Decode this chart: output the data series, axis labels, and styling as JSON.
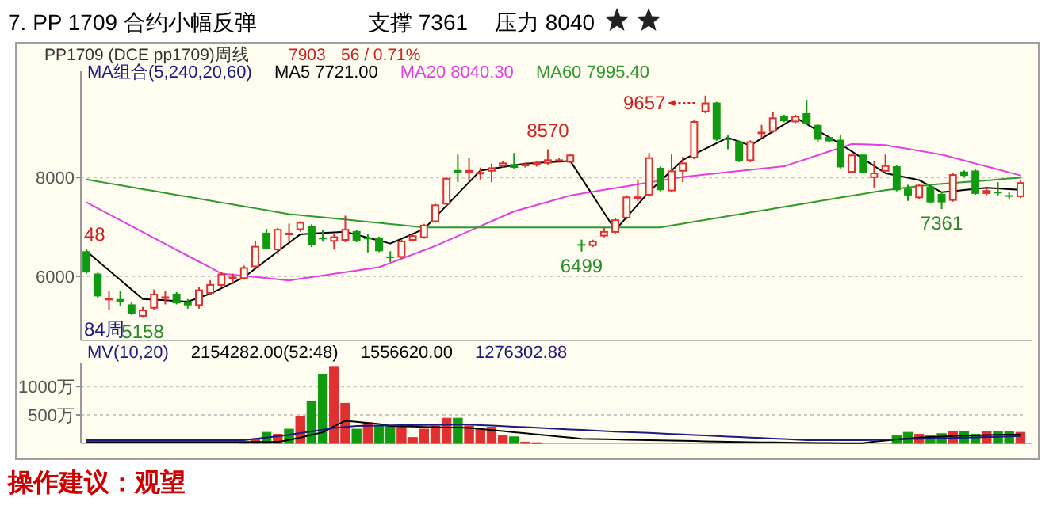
{
  "chart_data": [
    {
      "type": "candlestick",
      "title": "7. PP 1709 合约小幅反弹",
      "subtitle": "PP1709 (DCE pp1709)周线",
      "categories": [
        null,
        null,
        null,
        null,
        null,
        null,
        null,
        null,
        null,
        null,
        null,
        null,
        null,
        null,
        null,
        null,
        null,
        null,
        null,
        null,
        null,
        null,
        null,
        null,
        null,
        null,
        null,
        null,
        null,
        null,
        null,
        null,
        null,
        null,
        null,
        null,
        null,
        null,
        null,
        null,
        null,
        null,
        null,
        null,
        null,
        null,
        null,
        null,
        null,
        null,
        null,
        null,
        null,
        null,
        null,
        null,
        null,
        null,
        null,
        null,
        null,
        null,
        null,
        null,
        null,
        null,
        null,
        null,
        null,
        null,
        null,
        null,
        null,
        null,
        null,
        null,
        null,
        null,
        null,
        null,
        null,
        null,
        null,
        null
      ],
      "ohlc": [
        [
          6506,
          6560,
          6054,
          6076
        ],
        [
          6054,
          6075,
          5560,
          5592
        ],
        [
          5550,
          5700,
          5323,
          5560
        ],
        [
          5538,
          5700,
          5400,
          5485
        ],
        [
          5431,
          5485,
          5215,
          5237
        ],
        [
          5183,
          5377,
          5158,
          5323
        ],
        [
          5345,
          5732,
          5323,
          5646
        ],
        [
          5560,
          5700,
          5430,
          5590
        ],
        [
          5646,
          5680,
          5430,
          5452
        ],
        [
          5485,
          5538,
          5345,
          5410
        ],
        [
          5400,
          5775,
          5345,
          5732
        ],
        [
          5646,
          5915,
          5625,
          5840
        ],
        [
          5807,
          6080,
          5790,
          6054
        ],
        [
          5980,
          6054,
          5840,
          5990
        ],
        [
          5947,
          6215,
          5930,
          6183
        ],
        [
          6183,
          6720,
          6160,
          6613
        ],
        [
          6882,
          6957,
          6540,
          6560
        ],
        [
          6527,
          6980,
          6452,
          6957
        ],
        [
          6860,
          7065,
          6720,
          6880
        ],
        [
          6936,
          7110,
          6900,
          7097
        ],
        [
          7022,
          7050,
          6590,
          6635
        ],
        [
          6780,
          6936,
          6700,
          6775
        ],
        [
          6700,
          6850,
          6540,
          6807
        ],
        [
          6720,
          7226,
          6690,
          6957
        ],
        [
          6914,
          6935,
          6690,
          6720
        ],
        [
          6780,
          6850,
          6484,
          6770
        ],
        [
          6775,
          6800,
          6490,
          6506
        ],
        [
          6400,
          6506,
          6290,
          6395
        ],
        [
          6377,
          6740,
          6355,
          6720
        ],
        [
          6720,
          6860,
          6700,
          6828
        ],
        [
          6775,
          7060,
          6760,
          7043
        ],
        [
          7097,
          7470,
          7080,
          7452
        ],
        [
          7452,
          8000,
          7430,
          7989
        ],
        [
          8150,
          8462,
          7903,
          8086
        ],
        [
          8086,
          8387,
          7950,
          8150
        ],
        [
          8100,
          8200,
          7957,
          8110
        ],
        [
          8118,
          8280,
          7903,
          8204
        ],
        [
          8226,
          8340,
          8200,
          8301
        ],
        [
          8269,
          8495,
          8180,
          8194
        ],
        [
          8226,
          8300,
          8200,
          8280
        ],
        [
          8247,
          8330,
          8220,
          8312
        ],
        [
          8280,
          8570,
          8260,
          8366
        ],
        [
          8360,
          8400,
          8330,
          8365
        ],
        [
          8301,
          8480,
          8290,
          8462
        ],
        [
          6650,
          6742,
          6499,
          6630
        ],
        [
          6613,
          6740,
          6590,
          6720
        ],
        [
          6807,
          6990,
          6790,
          6914
        ],
        [
          6882,
          7170,
          6860,
          7150
        ],
        [
          7172,
          7640,
          7150,
          7613
        ],
        [
          7600,
          7957,
          7527,
          7615
        ],
        [
          7635,
          8495,
          7610,
          8408
        ],
        [
          8194,
          8220,
          7720,
          7742
        ],
        [
          7720,
          8462,
          7700,
          8140
        ],
        [
          8118,
          8420,
          7903,
          8301
        ],
        [
          8387,
          9160,
          8370,
          9140
        ],
        [
          9322,
          9657,
          9300,
          9516
        ],
        [
          9516,
          9530,
          8740,
          8763
        ],
        [
          8790,
          8850,
          8570,
          8780
        ],
        [
          8731,
          8750,
          8310,
          8333
        ],
        [
          8333,
          8750,
          8310,
          8731
        ],
        [
          8920,
          9064,
          8800,
          8925
        ],
        [
          8924,
          9322,
          8900,
          9215
        ],
        [
          9247,
          9270,
          9120,
          9140
        ],
        [
          9118,
          9270,
          9100,
          9247
        ],
        [
          9300,
          9570,
          9060,
          9086
        ],
        [
          9064,
          9080,
          8710,
          8763
        ],
        [
          8817,
          8840,
          8700,
          8731
        ],
        [
          8763,
          8870,
          8180,
          8204
        ],
        [
          8097,
          8480,
          8080,
          8462
        ],
        [
          8462,
          8480,
          8080,
          8097
        ],
        [
          7989,
          8333,
          7796,
          8097
        ],
        [
          8118,
          8462,
          8100,
          8247
        ],
        [
          8226,
          8240,
          7720,
          7742
        ],
        [
          7774,
          7850,
          7527,
          7635
        ],
        [
          7581,
          7870,
          7560,
          7850
        ],
        [
          7817,
          7830,
          7470,
          7495
        ],
        [
          7667,
          7700,
          7361,
          7495
        ],
        [
          7527,
          8086,
          7510,
          8065
        ],
        [
          8118,
          8140,
          8010,
          8032
        ],
        [
          8140,
          8160,
          7650,
          7667
        ],
        [
          7667,
          7780,
          7640,
          7742
        ],
        [
          7710,
          7903,
          7640,
          7700
        ],
        [
          7640,
          7700,
          7550,
          7635
        ],
        [
          7602,
          7940,
          7580,
          7903
        ]
      ],
      "colors": [
        "#109a10",
        "#109a10",
        "#e03030",
        "#109a10",
        "#109a10",
        "#e03030",
        "#e03030",
        "#e03030",
        "#109a10",
        "#109a10",
        "#e03030",
        "#e03030",
        "#e03030",
        "#e03030",
        "#e03030",
        "#e03030",
        "#109a10",
        "#e03030",
        "#e03030",
        "#e03030",
        "#109a10",
        "#109a10",
        "#e03030",
        "#e03030",
        "#109a10",
        "#109a10",
        "#109a10",
        "#109a10",
        "#e03030",
        "#e03030",
        "#e03030",
        "#e03030",
        "#e03030",
        "#109a10",
        "#e03030",
        "#e03030",
        "#e03030",
        "#e03030",
        "#109a10",
        "#e03030",
        "#e03030",
        "#e03030",
        "#e03030",
        "#e03030",
        "#109a10",
        "#e03030",
        "#e03030",
        "#e03030",
        "#e03030",
        "#e03030",
        "#e03030",
        "#109a10",
        "#e03030",
        "#e03030",
        "#e03030",
        "#e03030",
        "#109a10",
        "#109a10",
        "#109a10",
        "#e03030",
        "#e03030",
        "#e03030",
        "#109a10",
        "#e03030",
        "#109a10",
        "#109a10",
        "#109a10",
        "#109a10",
        "#e03030",
        "#109a10",
        "#e03030",
        "#e03030",
        "#109a10",
        "#109a10",
        "#e03030",
        "#109a10",
        "#109a10",
        "#e03030",
        "#109a10",
        "#109a10",
        "#e03030",
        "#109a10",
        "#109a10",
        "#e03030"
      ],
      "series": [
        {
          "name": "MA5 7721.00",
          "type": "line",
          "color": "#000000",
          "values": [
            6506,
            6312,
            6119,
            5925,
            5732,
            5538,
            5525,
            5512,
            5498,
            5485,
            5566,
            5646,
            5757,
            5869,
            5980,
            6154,
            6328,
            6502,
            6676,
            6850,
            6863,
            6875,
            6888,
            6900,
            6841,
            6781,
            6722,
            6662,
            6760,
            6859,
            6957,
            7194,
            7430,
            7667,
            7903,
            8140,
            8176,
            8211,
            8247,
            8280,
            8293,
            8307,
            8320,
            8333,
            7984,
            7635,
            7286,
            6936,
            7194,
            7452,
            7710,
            7925,
            8140,
            8355,
            8468,
            8581,
            8693,
            8806,
            8726,
            8645,
            8788,
            8930,
            9073,
            9215,
            9081,
            8946,
            8812,
            8677,
            8529,
            8381,
            8234,
            8086,
            8039,
            7993,
            7946,
            7823,
            7700,
            7723,
            7745,
            7768,
            7790,
            7777,
            7763,
            7750
          ]
        },
        {
          "name": "MA20 8040.30",
          "type": "line",
          "color": "#e040e0",
          "values": [
            7495,
            7375,
            7255,
            7135,
            7015,
            6895,
            6775,
            6655,
            6535,
            6415,
            6295,
            6175,
            6054,
            6031,
            6008,
            5985,
            5962,
            5938,
            5915,
            5949,
            5982,
            6016,
            6049,
            6083,
            6116,
            6150,
            6183,
            6269,
            6355,
            6441,
            6527,
            6613,
            6713,
            6813,
            6913,
            7013,
            7113,
            7213,
            7312,
            7377,
            7441,
            7506,
            7570,
            7635,
            7673,
            7710,
            7748,
            7785,
            7823,
            7860,
            7898,
            7935,
            7973,
            8010,
            8034,
            8058,
            8082,
            8106,
            8130,
            8154,
            8178,
            8202,
            8226,
            8301,
            8376,
            8451,
            8527,
            8602,
            8677,
            8670,
            8662,
            8655,
            8616,
            8578,
            8539,
            8501,
            8462,
            8402,
            8342,
            8281,
            8221,
            8161,
            8100,
            8040
          ]
        },
        {
          "name": "MA60 7995.40",
          "type": "line",
          "color": "#2e9a2e",
          "values": [
            7957,
            7918,
            7880,
            7841,
            7802,
            7763,
            7724,
            7686,
            7647,
            7608,
            7569,
            7530,
            7491,
            7453,
            7414,
            7375,
            7336,
            7297,
            7258,
            7236,
            7214,
            7191,
            7169,
            7147,
            7124,
            7102,
            7080,
            7057,
            7035,
            7012,
            6990,
            6990,
            6990,
            6990,
            6990,
            6990,
            6990,
            6990,
            6990,
            6990,
            6990,
            6990,
            6990,
            6990,
            6990,
            6990,
            6990,
            6990,
            6990,
            6990,
            6990,
            6990,
            7028,
            7065,
            7103,
            7140,
            7178,
            7216,
            7253,
            7291,
            7328,
            7366,
            7404,
            7441,
            7479,
            7516,
            7554,
            7592,
            7629,
            7667,
            7704,
            7742,
            7769,
            7796,
            7823,
            7850,
            7868,
            7886,
            7904,
            7922,
            7940,
            7958,
            7977,
            7995
          ]
        }
      ],
      "ylim": [
        4700,
        10150
      ],
      "yticks": [
        6000,
        8000
      ],
      "grid": "y",
      "legend": "top left",
      "tick_labels": "y",
      "annotations": [
        "支撑 7361",
        "压力 8040",
        "7903",
        "56 / 0.71%",
        "MA组合(5,240,20,60)",
        "48",
        "84周",
        {
          "text": "5158",
          "y": 5158
        },
        {
          "text": "8570",
          "y": 8570
        },
        "9657",
        {
          "text": "6499",
          "y": 6499
        },
        {
          "text": "7361",
          "y": 7361
        }
      ]
    },
    {
      "type": "bar",
      "categories": [
        null,
        null,
        null,
        null,
        null,
        null,
        null,
        null,
        null,
        null,
        null,
        null,
        null,
        null,
        null,
        null,
        null,
        null,
        null,
        null,
        null,
        null,
        null,
        null,
        null,
        null,
        null,
        null,
        null,
        null,
        null,
        null,
        null,
        null,
        null,
        null,
        null,
        null,
        null,
        null,
        null,
        null,
        null,
        null,
        null,
        null,
        null,
        null,
        null,
        null,
        null,
        null,
        null,
        null,
        null,
        null,
        null,
        null,
        null,
        null,
        null,
        null,
        null,
        null,
        null,
        null,
        null,
        null,
        null,
        null,
        null,
        null,
        null,
        null,
        null,
        null,
        null,
        null,
        null,
        null,
        null,
        null,
        null,
        null
      ],
      "series": [
        {
          "type": "bar",
          "values": [
            null,
            null,
            null,
            null,
            null,
            null,
            null,
            null,
            null,
            null,
            null,
            null,
            null,
            null,
            23,
            80,
            193,
            159,
            250,
            466,
            738,
            1215,
            1352,
            704,
            250,
            364,
            307,
            307,
            307,
            102,
            250,
            307,
            443,
            443,
            307,
            250,
            284,
            136,
            114,
            23,
            11,
            null,
            null,
            null,
            null,
            null,
            null,
            null,
            null,
            null,
            null,
            null,
            null,
            null,
            null,
            null,
            null,
            null,
            null,
            null,
            null,
            null,
            null,
            null,
            null,
            null,
            null,
            null,
            null,
            null,
            null,
            null,
            136,
            193,
            159,
            136,
            170,
            216,
            216,
            159,
            216,
            216,
            216,
            193
          ],
          "colors": [
            null,
            null,
            null,
            null,
            null,
            null,
            null,
            null,
            null,
            null,
            null,
            null,
            null,
            null,
            "#e03030",
            "#e03030",
            "#109a10",
            "#e03030",
            "#109a10",
            "#e03030",
            "#109a10",
            "#109a10",
            "#e03030",
            "#e03030",
            "#109a10",
            "#e03030",
            "#109a10",
            "#109a10",
            "#e03030",
            "#e03030",
            "#e03030",
            "#e03030",
            "#e03030",
            "#109a10",
            "#e03030",
            "#e03030",
            "#e03030",
            "#e03030",
            "#109a10",
            "#e03030",
            "#e03030",
            null,
            null,
            null,
            null,
            null,
            null,
            null,
            null,
            null,
            null,
            null,
            null,
            null,
            null,
            null,
            null,
            null,
            null,
            null,
            null,
            null,
            null,
            null,
            null,
            null,
            null,
            null,
            null,
            null,
            null,
            null,
            "#109a10",
            "#109a10",
            "#e03030",
            "#109a10",
            "#109a10",
            "#e03030",
            "#109a10",
            "#109a10",
            "#e03030",
            "#109a10",
            "#109a10",
            "#e03030"
          ]
        },
        {
          "name": "1556620.00",
          "type": "line",
          "color": "#000000",
          "values": [
            23,
            23,
            23,
            23,
            23,
            23,
            23,
            23,
            23,
            23,
            23,
            23,
            23,
            23,
            23,
            23,
            23,
            23,
            60,
            100,
            150,
            193,
            300,
            398,
            380,
            360,
            340,
            307,
            300,
            295,
            290,
            285,
            280,
            277,
            273,
            254,
            234,
            215,
            196,
            177,
            157,
            138,
            119,
            100,
            80,
            76,
            72,
            68,
            64,
            60,
            56,
            52,
            48,
            44,
            40,
            36,
            32,
            28,
            24,
            20,
            18,
            16,
            14,
            12,
            10,
            8,
            6,
            4,
            2,
            2,
            30,
            50,
            70,
            85,
            100,
            110,
            120,
            128,
            135,
            140,
            145,
            150,
            153,
            156
          ]
        },
        {
          "name": "1276302.88",
          "type": "line",
          "color": "#1a1a80",
          "values": [
            57,
            57,
            57,
            57,
            57,
            57,
            57,
            57,
            57,
            57,
            57,
            57,
            57,
            57,
            57,
            80,
            100,
            125,
            150,
            180,
            210,
            240,
            270,
            290,
            307,
            310,
            313,
            316,
            319,
            322,
            325,
            327,
            328,
            329,
            330,
            321,
            312,
            303,
            294,
            285,
            275,
            265,
            255,
            245,
            235,
            225,
            215,
            205,
            199,
            193,
            184,
            175,
            165,
            156,
            147,
            138,
            129,
            120,
            111,
            102,
            93,
            84,
            75,
            66,
            57,
            57,
            57,
            57,
            57,
            57,
            60,
            65,
            70,
            75,
            80,
            85,
            90,
            95,
            100,
            105,
            110,
            115,
            122,
            128
          ]
        }
      ],
      "ylim": [
        0,
        1420
      ],
      "yticks": [
        {
          "value": 500,
          "label": "500万"
        },
        {
          "value": 1000,
          "label": "1000万"
        }
      ],
      "grid": "y",
      "legend": "top left",
      "tick_labels": "y",
      "annotations": [
        "MV(10,20)",
        "2154282.00(52:48)",
        "操作建议：观望"
      ]
    }
  ]
}
